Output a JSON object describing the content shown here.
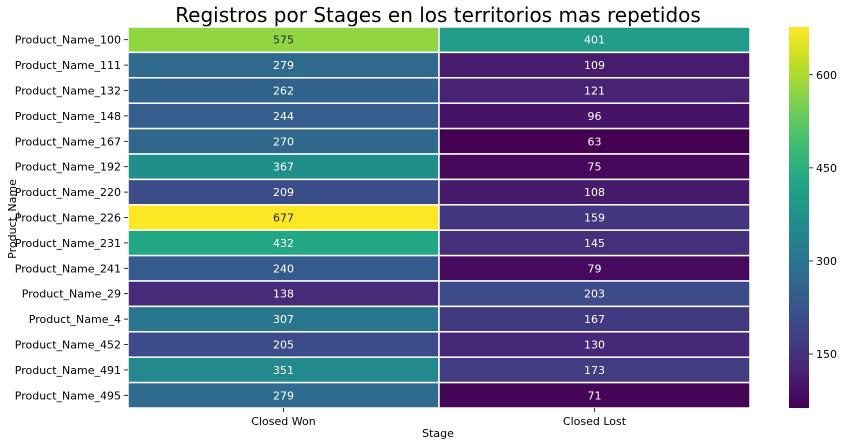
{
  "chart_data": {
    "type": "heatmap",
    "title": "Registros por Stages en los territorios mas repetidos",
    "xlabel": "Stage",
    "ylabel": "Product_Name",
    "columns": [
      "Closed Won",
      "Closed Lost"
    ],
    "rows": [
      "Product_Name_100",
      "Product_Name_111",
      "Product_Name_132",
      "Product_Name_148",
      "Product_Name_167",
      "Product_Name_192",
      "Product_Name_220",
      "Product_Name_226",
      "Product_Name_231",
      "Product_Name_241",
      "Product_Name_29",
      "Product_Name_4",
      "Product_Name_452",
      "Product_Name_491",
      "Product_Name_495"
    ],
    "values": [
      [
        575,
        401
      ],
      [
        279,
        109
      ],
      [
        262,
        121
      ],
      [
        244,
        96
      ],
      [
        270,
        63
      ],
      [
        367,
        75
      ],
      [
        209,
        108
      ],
      [
        677,
        159
      ],
      [
        432,
        145
      ],
      [
        240,
        79
      ],
      [
        138,
        203
      ],
      [
        307,
        167
      ],
      [
        205,
        130
      ],
      [
        351,
        173
      ],
      [
        279,
        71
      ]
    ],
    "colormap": "viridis",
    "vmin": 63,
    "vmax": 677,
    "colorbar_ticks": [
      150,
      300,
      450,
      600
    ],
    "cell_gridlines": "white"
  }
}
